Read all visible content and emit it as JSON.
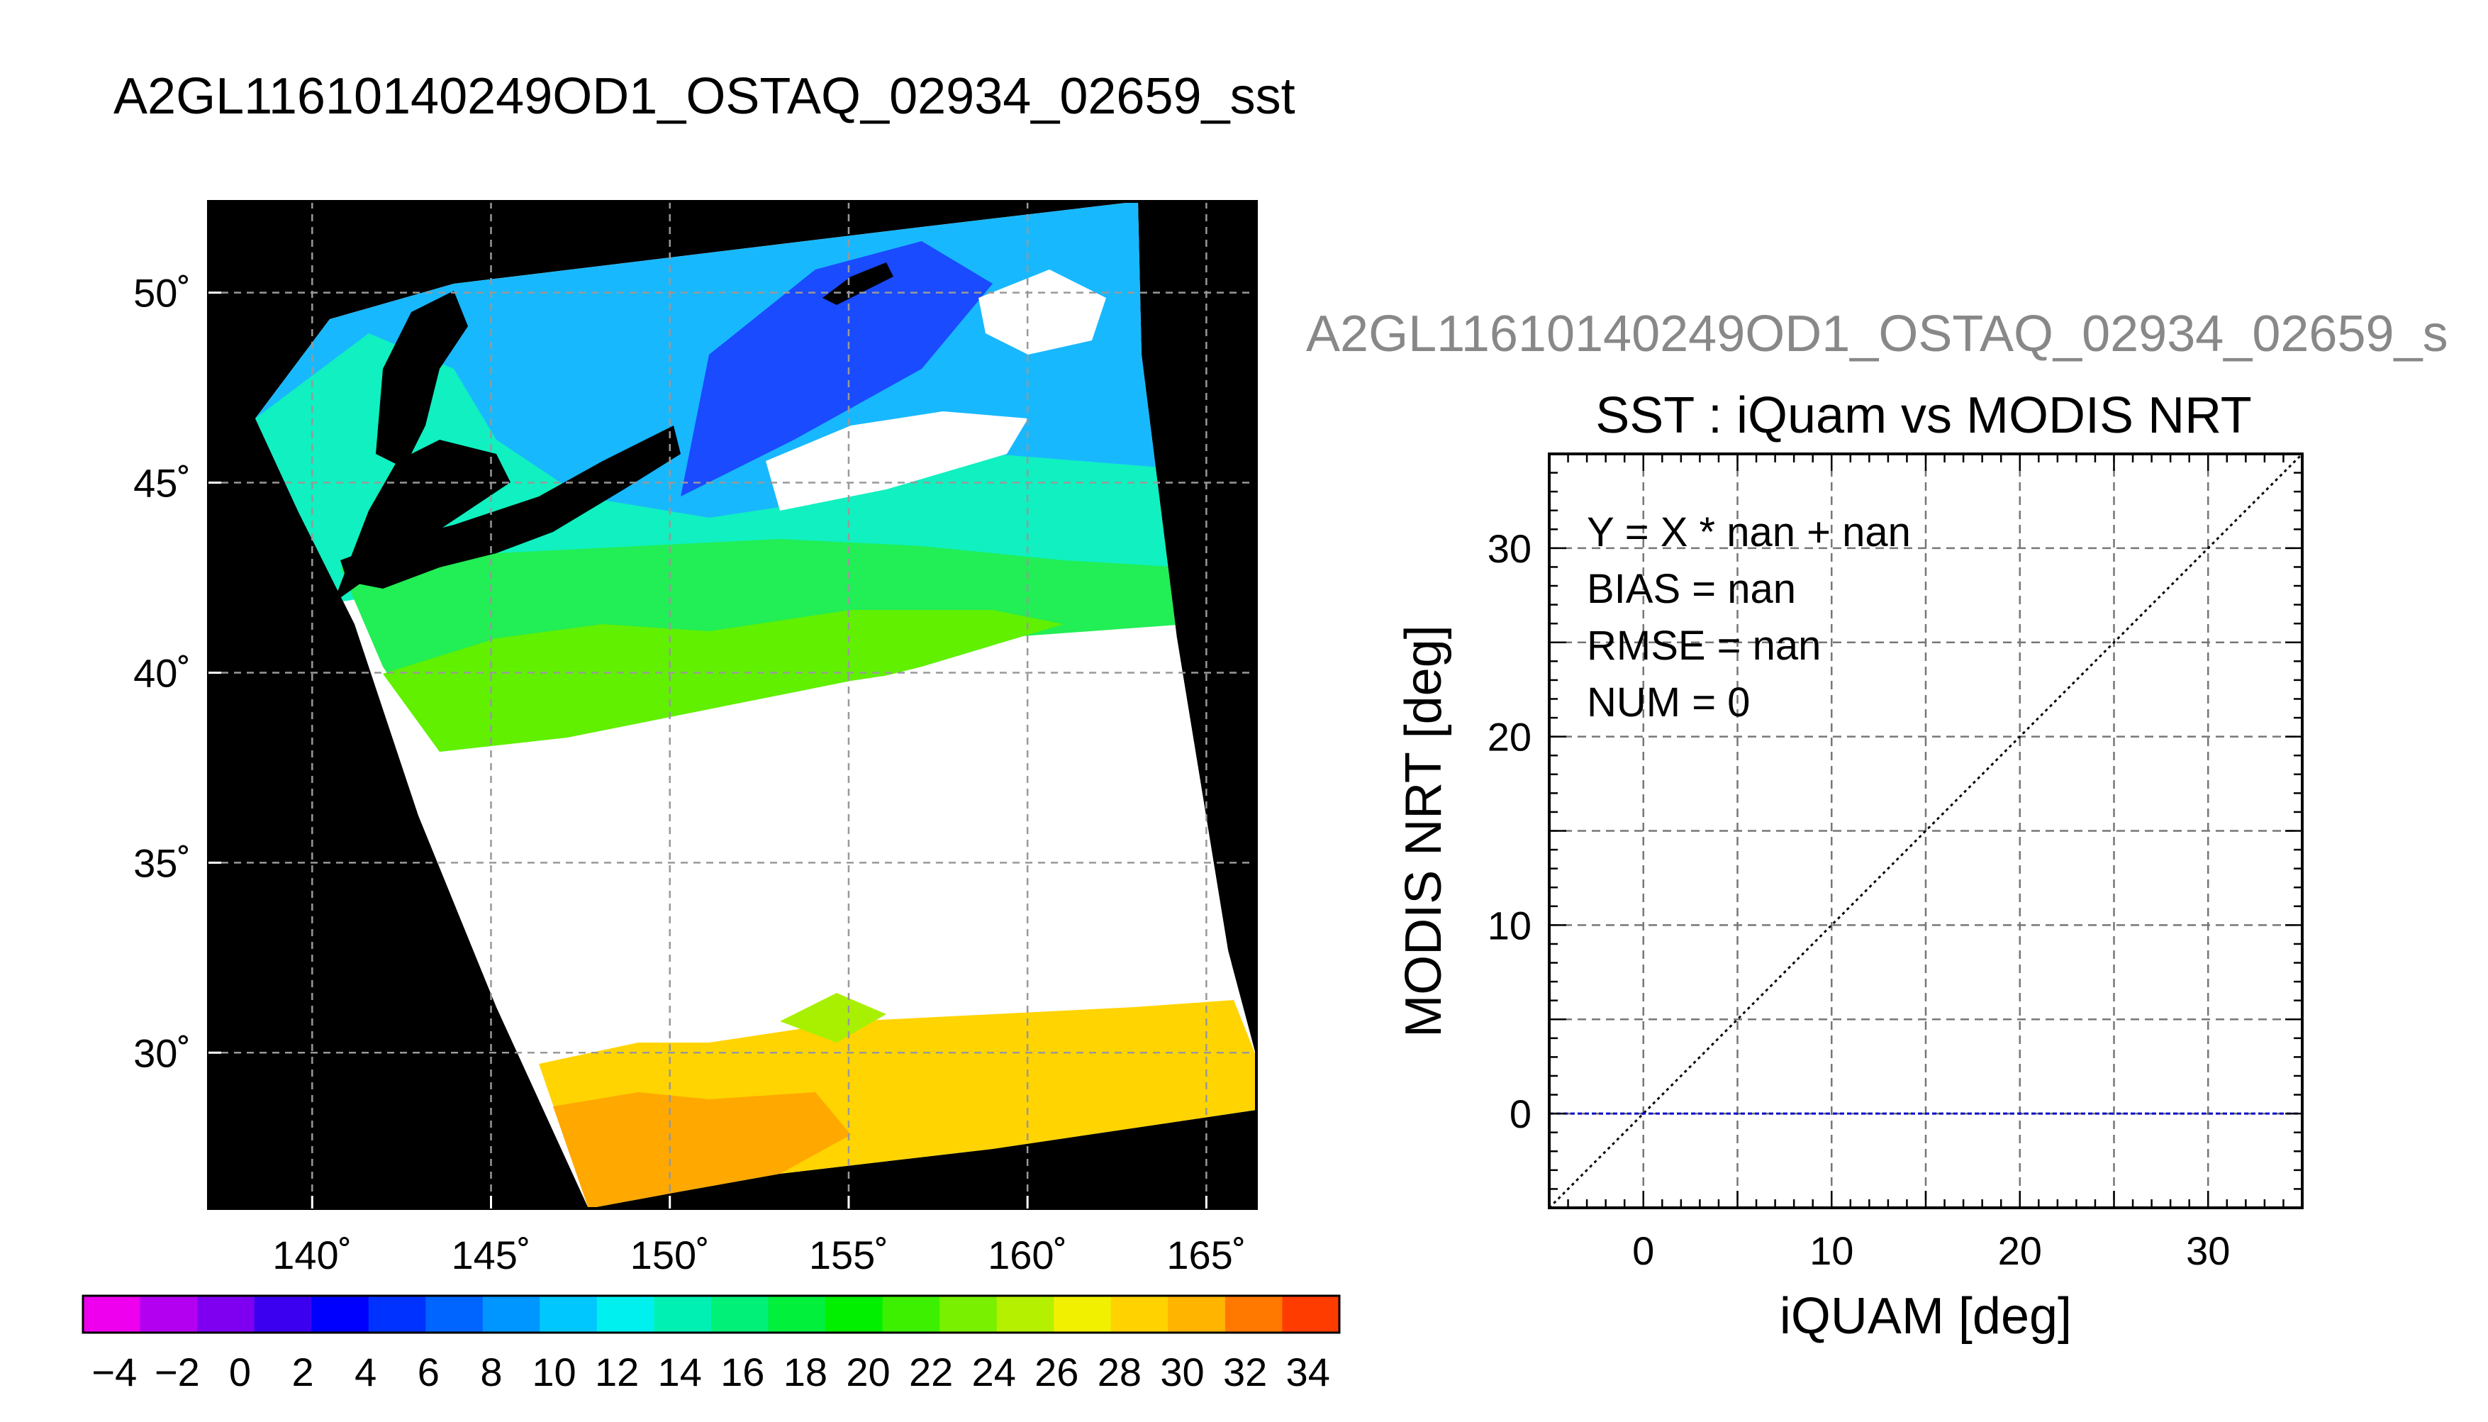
{
  "page_title": "A2GL11610140249OD1_OSTAQ_02934_02659_sst",
  "chart_data": [
    {
      "type": "heatmap",
      "title": "A2GL11610140249OD1_OSTAQ_02934_02659_sst",
      "x_ticks": [
        "140˚",
        "145˚",
        "150˚",
        "155˚",
        "160˚",
        "165˚"
      ],
      "x_tick_values": [
        140,
        145,
        150,
        155,
        160,
        165
      ],
      "y_ticks": [
        "30˚",
        "35˚",
        "40˚",
        "45˚",
        "50˚"
      ],
      "y_tick_values": [
        30,
        35,
        40,
        45,
        50
      ],
      "xlim": [
        137.1,
        166.4
      ],
      "ylim": [
        25.9,
        52.4
      ],
      "grid": true,
      "colorbar": {
        "range": [
          -5,
          35
        ],
        "step": 2,
        "tick_labels": [
          "−4",
          "−2",
          "0",
          "2",
          "4",
          "6",
          "8",
          "10",
          "12",
          "14",
          "16",
          "18",
          "20",
          "22",
          "24",
          "26",
          "28",
          "30",
          "32",
          "34"
        ],
        "tick_values": [
          -4,
          -2,
          0,
          2,
          4,
          6,
          8,
          10,
          12,
          14,
          16,
          18,
          20,
          22,
          24,
          26,
          28,
          30,
          32,
          34
        ],
        "colors": [
          "#ee00ee",
          "#b400f0",
          "#7f00f0",
          "#3c00f0",
          "#0000ff",
          "#0032ff",
          "#0064ff",
          "#0096ff",
          "#00c8ff",
          "#00f0f0",
          "#00f0b4",
          "#00f078",
          "#00f03c",
          "#00f000",
          "#3cf000",
          "#78f000",
          "#b4f000",
          "#f0f000",
          "#ffd200",
          "#ffb400",
          "#ff7800",
          "#ff3c00"
        ]
      },
      "missing_color": "#000000",
      "no_data_color": "#ffffff"
    },
    {
      "type": "scatter",
      "super_title": "A2GL11610140249OD1_OSTAQ_02934_02659_s",
      "title": "SST : iQuam vs MODIS NRT",
      "xlabel": "iQUAM [deg]",
      "ylabel": "MODIS NRT [deg]",
      "xlim": [
        -5,
        35
      ],
      "ylim": [
        -5,
        35
      ],
      "x_ticks": [
        "0",
        "10",
        "20",
        "30"
      ],
      "x_tick_values": [
        0,
        10,
        20,
        30
      ],
      "y_ticks": [
        "0",
        "10",
        "20",
        "30"
      ],
      "y_tick_values": [
        0,
        10,
        20,
        30
      ],
      "grid": true,
      "annotations": [
        "Y = X * nan + nan",
        "BIAS = nan",
        "RMSE = nan",
        "NUM = 0"
      ],
      "series": [],
      "reference_lines": [
        {
          "kind": "identity",
          "color": "#000000",
          "style": "dotted"
        },
        {
          "kind": "horizontal",
          "y": 0,
          "color": "#0000cc",
          "style": "dashed"
        }
      ]
    }
  ]
}
